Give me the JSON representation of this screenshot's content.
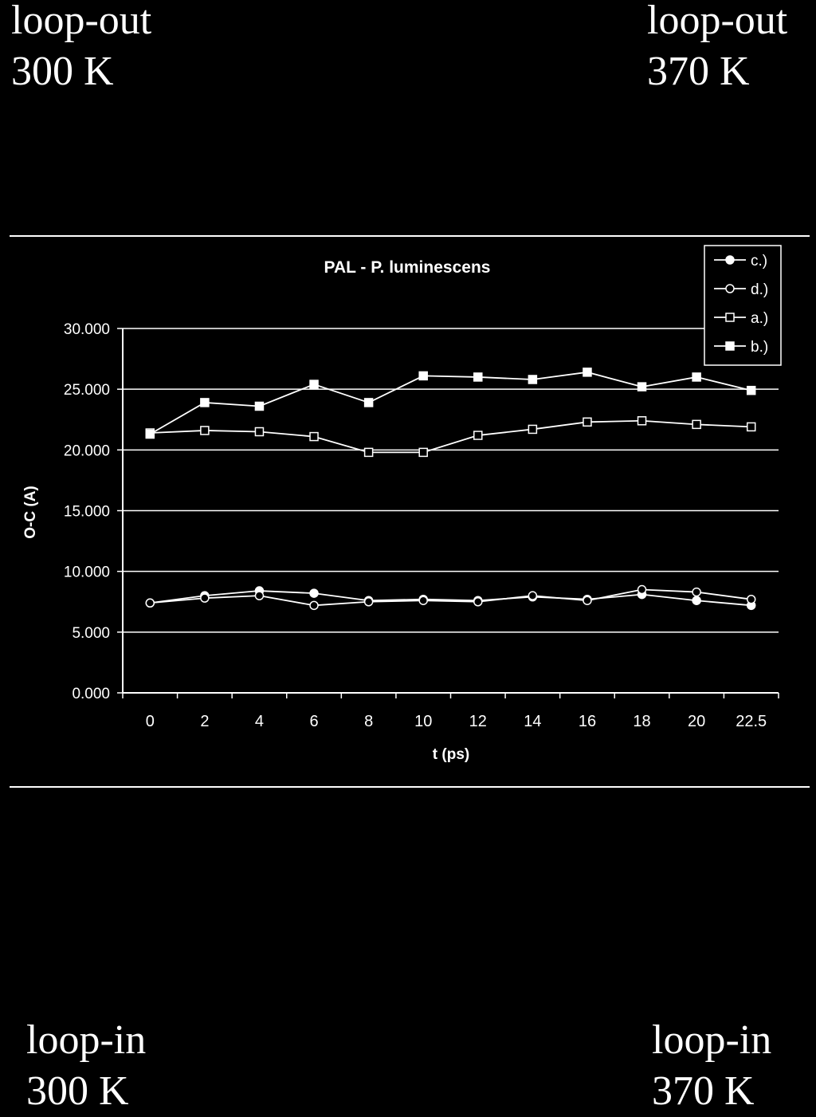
{
  "labels": {
    "top_left": {
      "name": "loop-out",
      "temp": "300 K"
    },
    "top_right": {
      "name": "loop-out",
      "temp": "370 K"
    },
    "bottom_left": {
      "name": "loop-in",
      "temp": "300 K"
    },
    "bottom_right": {
      "name": "loop-in",
      "temp": "370 K"
    }
  },
  "colors": {
    "background": "#000000",
    "foreground": "#ffffff"
  },
  "chart_data": {
    "type": "line",
    "title": "PAL - P. luminescens",
    "xlabel": "t (ps)",
    "ylabel": "O-C (A)",
    "categories": [
      "0",
      "2",
      "4",
      "6",
      "8",
      "10",
      "12",
      "14",
      "16",
      "18",
      "20",
      "22.5"
    ],
    "ylim": [
      0,
      30
    ],
    "yticks": [
      "0.000",
      "5.000",
      "10.000",
      "15.000",
      "20.000",
      "25.000",
      "30.000"
    ],
    "grid": "horizontal",
    "legend_position": "top-right",
    "series": [
      {
        "name": "c.)",
        "marker": "filled-circle",
        "values": [
          7.4,
          8.0,
          8.4,
          8.2,
          7.6,
          7.7,
          7.6,
          7.9,
          7.7,
          8.1,
          7.6,
          7.2
        ]
      },
      {
        "name": "d.)",
        "marker": "open-circle",
        "values": [
          7.4,
          7.8,
          8.0,
          7.2,
          7.5,
          7.6,
          7.5,
          8.0,
          7.6,
          8.5,
          8.3,
          7.7
        ]
      },
      {
        "name": "a.)",
        "marker": "open-square",
        "values": [
          21.4,
          21.6,
          21.5,
          21.1,
          19.8,
          19.8,
          21.2,
          21.7,
          22.3,
          22.4,
          22.1,
          21.9
        ]
      },
      {
        "name": "b.)",
        "marker": "filled-square",
        "values": [
          21.3,
          23.9,
          23.6,
          25.4,
          23.9,
          26.1,
          26.0,
          25.8,
          26.4,
          25.2,
          26.0,
          24.9
        ]
      }
    ]
  }
}
